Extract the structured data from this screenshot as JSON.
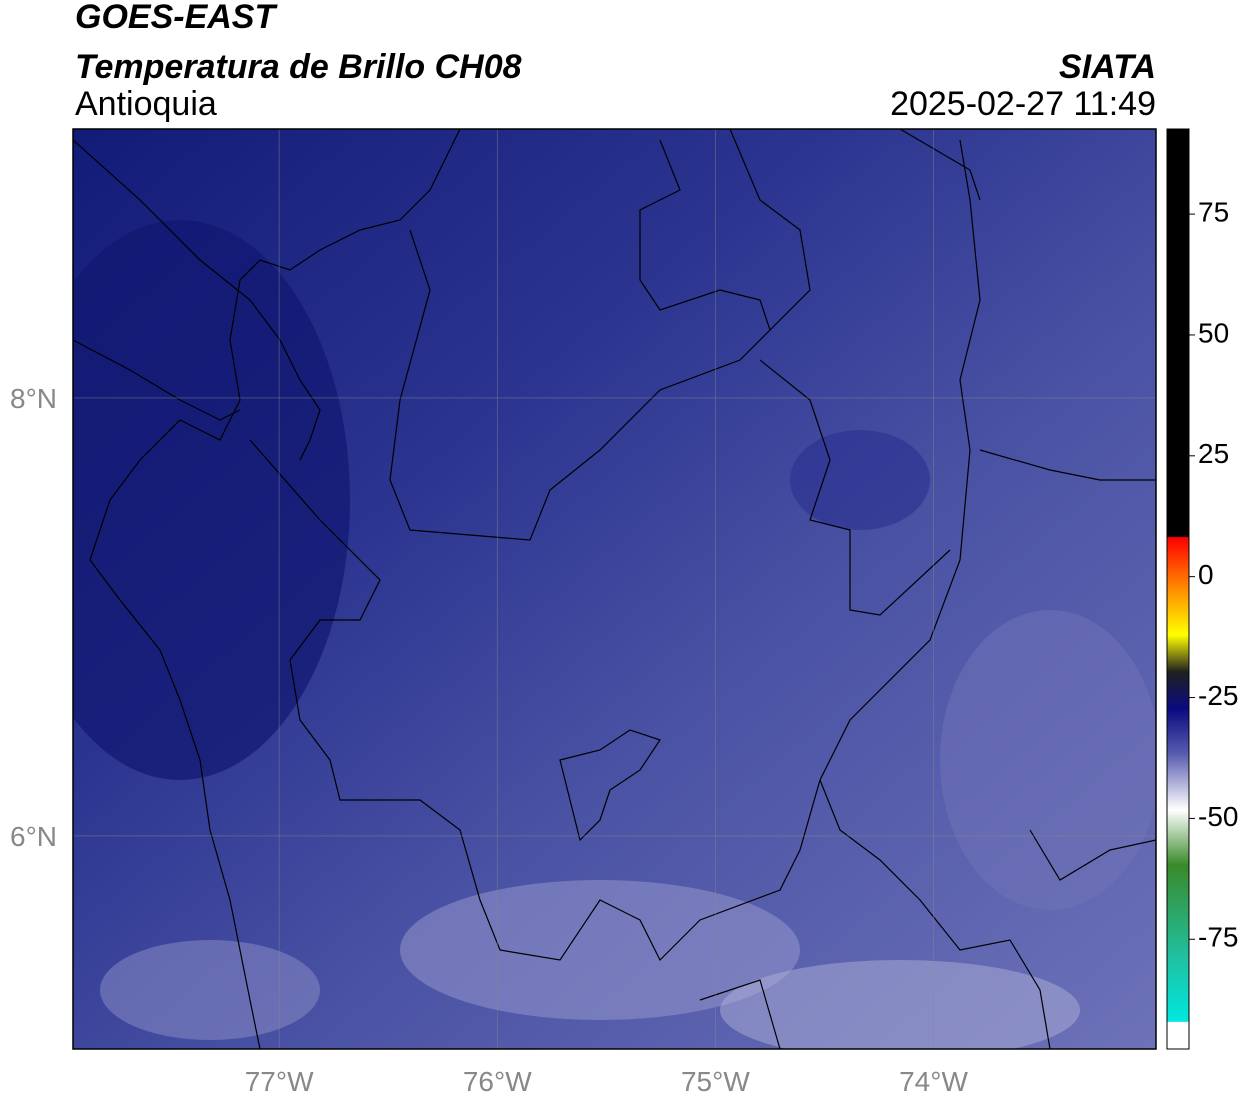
{
  "header": {
    "title": "GOES-EAST",
    "subtitle": "Temperatura de Brillo CH08",
    "region": "Antioquia",
    "source": "SIATA",
    "timestamp": "2025-02-27 11:49"
  },
  "map": {
    "xlim": [
      -77.945,
      -72.98
    ],
    "ylim": [
      5.027,
      9.228
    ],
    "xticks": [
      {
        "value": -77,
        "label": "77°W"
      },
      {
        "value": -76,
        "label": "76°W"
      },
      {
        "value": -75,
        "label": "75°W"
      },
      {
        "value": -74,
        "label": "74°W"
      }
    ],
    "yticks": [
      {
        "value": 8,
        "label": "8°N"
      },
      {
        "value": 6,
        "label": "6°N"
      }
    ]
  },
  "colorbar": {
    "lim": [
      -97.7,
      92.6
    ],
    "ticks": [
      75,
      50,
      25,
      0,
      -25,
      -50,
      -75
    ]
  }
}
